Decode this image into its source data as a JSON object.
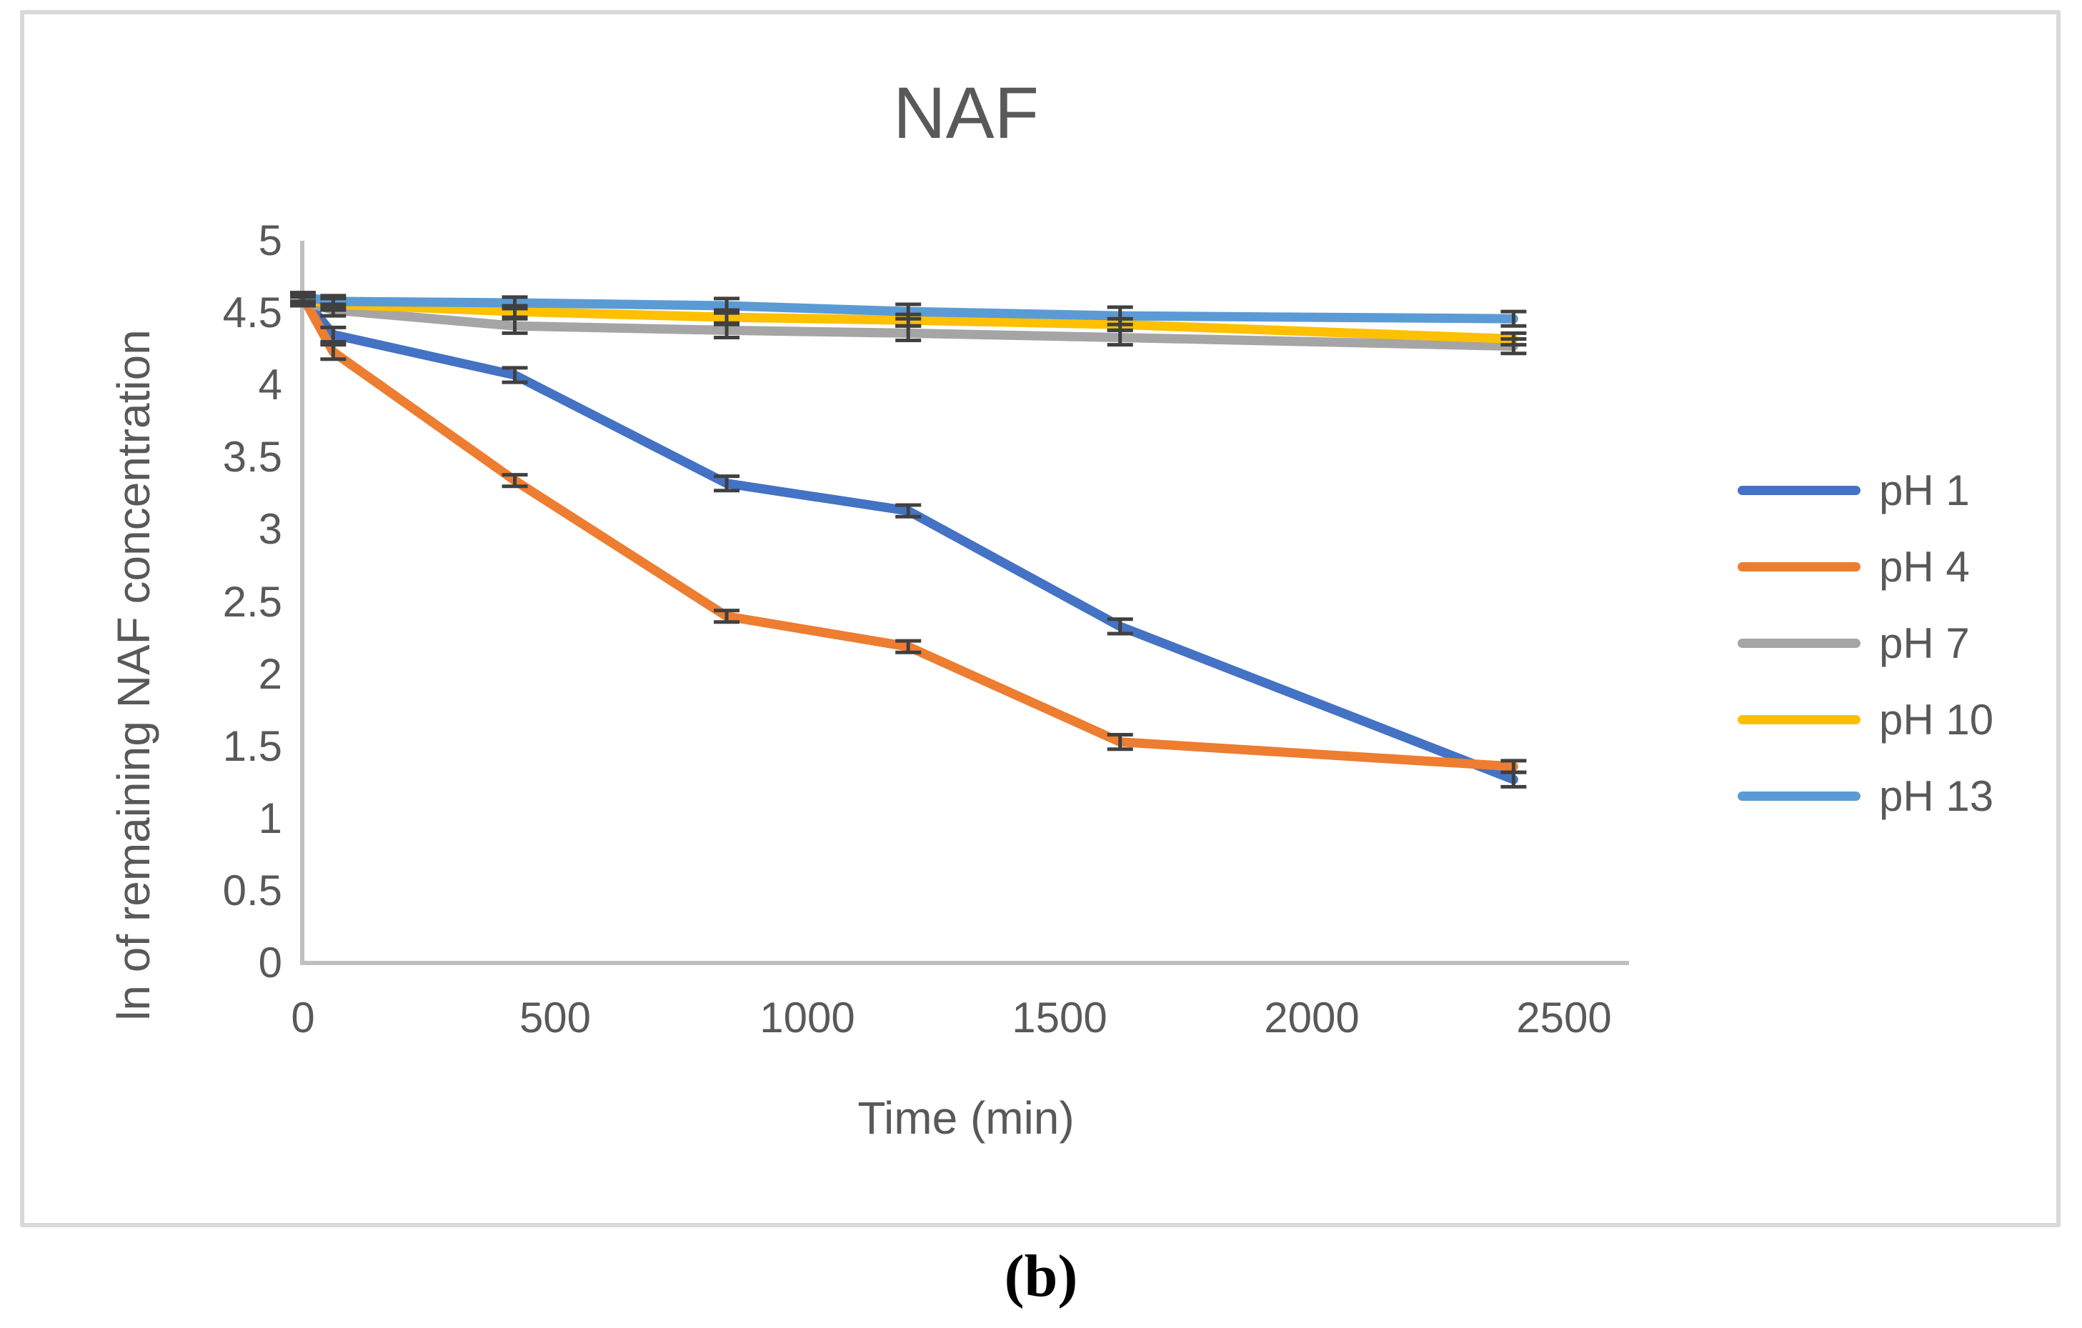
{
  "figure": {
    "caption": "(b)"
  },
  "colors": {
    "text": "#595959",
    "axis_line": "#BFBFBF",
    "error_bar": "#404040",
    "border": "#D9D9D9",
    "background": "#FFFFFF"
  },
  "chart_data": {
    "type": "line",
    "title": "NAF",
    "xlabel": "Time (min)",
    "ylabel": "ln of remaining NAF concentration",
    "grid": false,
    "legend_position": "right",
    "xlim": [
      0,
      2628
    ],
    "ylim": [
      0,
      5
    ],
    "x": [
      0,
      60,
      420,
      840,
      1200,
      1620,
      2400
    ],
    "x_ticks": [
      "0",
      "500",
      "1000",
      "1500",
      "2000",
      "2500"
    ],
    "x_tick_values": [
      0,
      500,
      1000,
      1500,
      2000,
      2500
    ],
    "y_ticks": [
      "5",
      "4.5",
      "4",
      "3.5",
      "3",
      "2.5",
      "2",
      "1.5",
      "1",
      "0.5",
      "0"
    ],
    "y_tick_values": [
      5,
      4.5,
      4,
      3.5,
      3,
      2.5,
      2,
      1.5,
      1,
      0.5,
      0
    ],
    "series": [
      {
        "name": "pH 1",
        "color": "#4472C4",
        "values": [
          4.61,
          4.35,
          4.07,
          3.32,
          3.13,
          2.33,
          1.27
        ],
        "errors": [
          0.03,
          0.05,
          0.05,
          0.05,
          0.04,
          0.05,
          0.05
        ]
      },
      {
        "name": "pH 4",
        "color": "#ED7D31",
        "values": [
          4.61,
          4.23,
          3.34,
          2.4,
          2.19,
          1.53,
          1.36
        ],
        "errors": [
          0.03,
          0.05,
          0.04,
          0.04,
          0.04,
          0.05,
          0.04
        ]
      },
      {
        "name": "pH 7",
        "color": "#A5A5A5",
        "values": [
          4.58,
          4.52,
          4.41,
          4.38,
          4.36,
          4.33,
          4.27
        ],
        "errors": [
          0.03,
          0.04,
          0.05,
          0.05,
          0.05,
          0.05,
          0.05
        ]
      },
      {
        "name": "pH 10",
        "color": "#FFC000",
        "values": [
          4.6,
          4.56,
          4.51,
          4.47,
          4.45,
          4.42,
          4.32
        ],
        "errors": [
          0.03,
          0.04,
          0.04,
          0.05,
          0.04,
          0.04,
          0.04
        ]
      },
      {
        "name": "pH 13",
        "color": "#5B9BD5",
        "values": [
          4.61,
          4.58,
          4.57,
          4.55,
          4.51,
          4.48,
          4.46
        ],
        "errors": [
          0.03,
          0.04,
          0.04,
          0.05,
          0.05,
          0.06,
          0.05
        ]
      }
    ]
  }
}
